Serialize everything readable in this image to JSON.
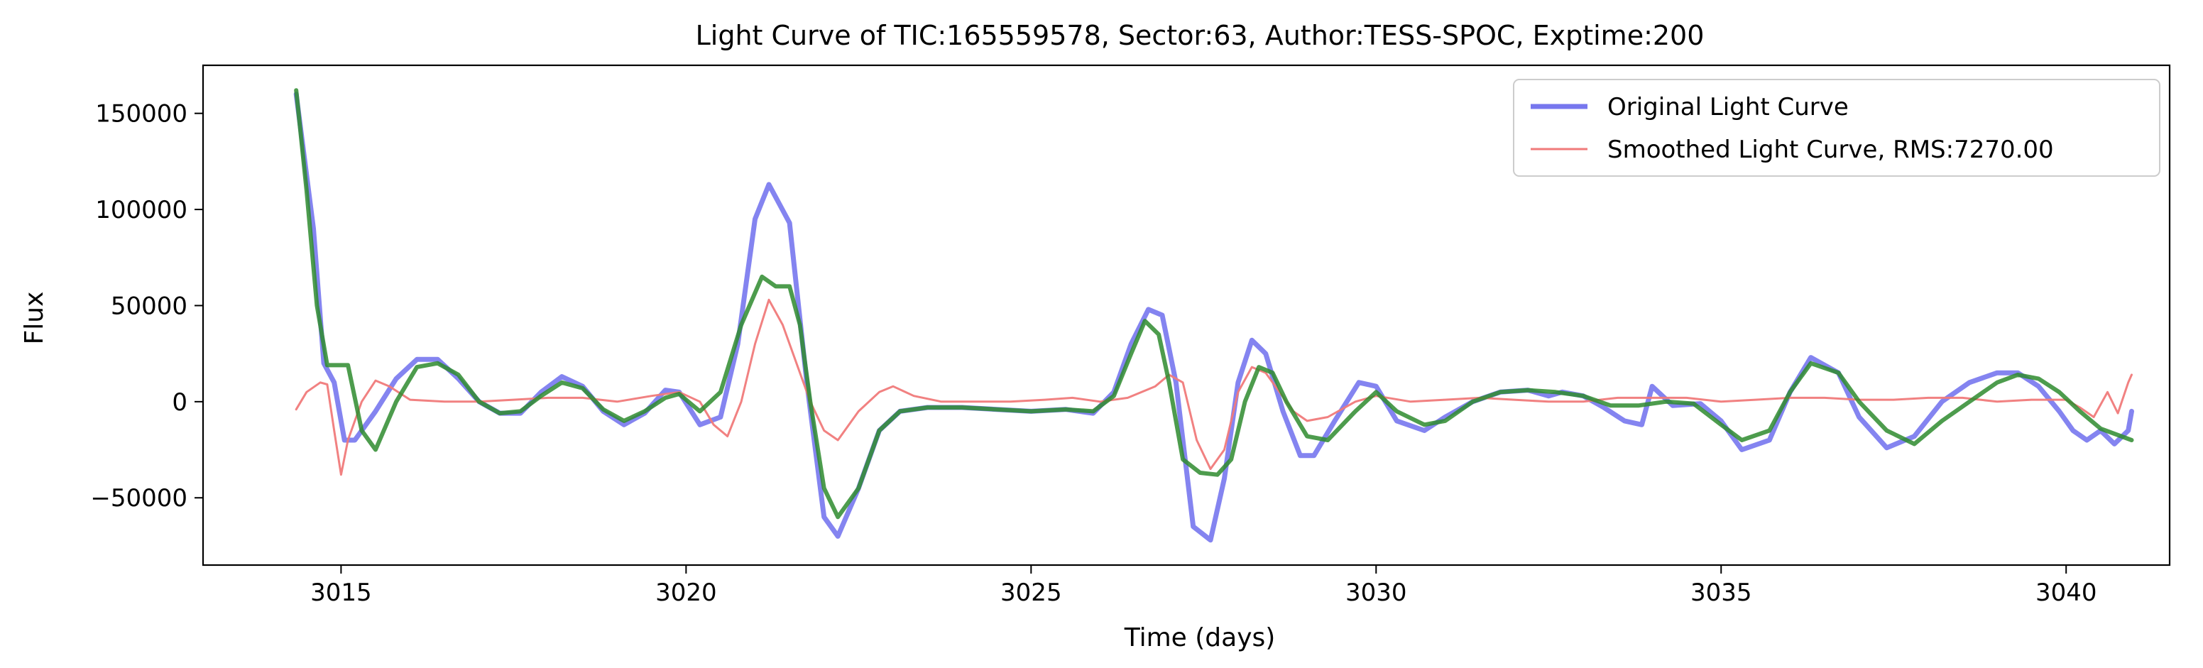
{
  "chart_data": {
    "type": "line",
    "title": "Light Curve of TIC:165559578, Sector:63, Author:TESS-SPOC, Exptime:200",
    "xlabel": "Time (days)",
    "ylabel": "Flux",
    "xlim": [
      3013,
      3041.5
    ],
    "ylim": [
      -85000,
      175000
    ],
    "xticks": [
      3015,
      3020,
      3025,
      3030,
      3035,
      3040
    ],
    "yticks": [
      -50000,
      0,
      50000,
      100000,
      150000
    ],
    "xtick_labels": [
      "3015",
      "3020",
      "3025",
      "3030",
      "3035",
      "3040"
    ],
    "ytick_labels": [
      "−50000",
      "0",
      "50000",
      "100000",
      "150000"
    ],
    "grid": false,
    "legend_position": "top-right",
    "legend": {
      "entries": [
        {
          "label": "Original Light Curve",
          "color": "#7777ee"
        },
        {
          "label": "Smoothed Light Curve, RMS:7270.00",
          "color": "#f07a7a"
        }
      ]
    },
    "series": [
      {
        "name": "Original Light Curve",
        "color": "#7777ee",
        "x": [
          3014.35,
          3014.6,
          3014.75,
          3014.9,
          3015.05,
          3015.2,
          3015.5,
          3015.8,
          3016.1,
          3016.4,
          3016.7,
          3017.0,
          3017.3,
          3017.6,
          3017.9,
          3018.2,
          3018.5,
          3018.8,
          3019.1,
          3019.4,
          3019.7,
          3019.9,
          3020.2,
          3020.5,
          3020.75,
          3021.0,
          3021.2,
          3021.5,
          3021.75,
          3022.0,
          3022.2,
          3022.5,
          3022.8,
          3023.1,
          3023.5,
          3024.0,
          3024.5,
          3025.0,
          3025.5,
          3025.9,
          3026.2,
          3026.45,
          3026.7,
          3026.9,
          3027.1,
          3027.35,
          3027.6,
          3027.8,
          3028.0,
          3028.2,
          3028.4,
          3028.65,
          3028.9,
          3029.1,
          3029.4,
          3029.75,
          3030.0,
          3030.3,
          3030.7,
          3031.0,
          3031.4,
          3031.8,
          3032.2,
          3032.5,
          3032.7,
          3033.0,
          3033.3,
          3033.6,
          3033.85,
          3034.0,
          3034.3,
          3034.7,
          3035.0,
          3035.3,
          3035.7,
          3036.0,
          3036.3,
          3036.7,
          3037.0,
          3037.4,
          3037.8,
          3038.2,
          3038.6,
          3039.0,
          3039.3,
          3039.6,
          3039.9,
          3040.1,
          3040.3,
          3040.5,
          3040.7,
          3040.9,
          3040.95
        ],
        "y": [
          160000,
          90000,
          20000,
          10000,
          -20000,
          -20000,
          -5000,
          12000,
          22000,
          22000,
          12000,
          0,
          -6000,
          -6000,
          5000,
          13000,
          8000,
          -5000,
          -12000,
          -6000,
          6000,
          5000,
          -12000,
          -8000,
          30000,
          95000,
          113000,
          93000,
          10000,
          -60000,
          -70000,
          -45000,
          -15000,
          -5000,
          -3000,
          -3000,
          -4000,
          -5000,
          -4000,
          -6000,
          5000,
          30000,
          48000,
          45000,
          10000,
          -65000,
          -72000,
          -40000,
          10000,
          32000,
          25000,
          -5000,
          -28000,
          -28000,
          -10000,
          10000,
          8000,
          -10000,
          -15000,
          -8000,
          0,
          5000,
          6000,
          3000,
          5000,
          3000,
          -3000,
          -10000,
          -12000,
          8000,
          -2000,
          -1000,
          -10000,
          -25000,
          -20000,
          5000,
          23000,
          15000,
          -8000,
          -24000,
          -18000,
          0,
          10000,
          15000,
          15000,
          8000,
          -5000,
          -15000,
          -20000,
          -15000,
          -22000,
          -15000,
          -5000
        ]
      },
      {
        "color": "#f07a7a",
        "x": [
          3014.35,
          3014.5,
          3014.7,
          3014.8,
          3014.9,
          3015.0,
          3015.1,
          3015.3,
          3015.5,
          3015.7,
          3016.0,
          3016.5,
          3017.0,
          3017.5,
          3018.0,
          3018.5,
          3019.0,
          3019.5,
          3019.9,
          3020.2,
          3020.4,
          3020.6,
          3020.8,
          3021.0,
          3021.2,
          3021.4,
          3021.6,
          3021.8,
          3022.0,
          3022.2,
          3022.5,
          3022.8,
          3023.0,
          3023.3,
          3023.7,
          3024.2,
          3024.7,
          3025.2,
          3025.6,
          3026.0,
          3026.4,
          3026.8,
          3027.0,
          3027.2,
          3027.4,
          3027.6,
          3027.8,
          3028.0,
          3028.2,
          3028.4,
          3028.6,
          3028.8,
          3029.0,
          3029.3,
          3029.7,
          3030.0,
          3030.5,
          3031.0,
          3031.5,
          3032.0,
          3032.5,
          3033.0,
          3033.5,
          3034.0,
          3034.5,
          3035.0,
          3035.5,
          3036.0,
          3036.5,
          3037.0,
          3037.5,
          3038.0,
          3038.5,
          3039.0,
          3039.5,
          3040.0,
          3040.2,
          3040.4,
          3040.6,
          3040.75,
          3040.9,
          3040.95
        ],
        "y": [
          -4000,
          5000,
          10000,
          9000,
          -15000,
          -38000,
          -20000,
          0,
          11000,
          8000,
          1000,
          0,
          0,
          1000,
          2000,
          2000,
          0,
          3000,
          5000,
          0,
          -12000,
          -18000,
          0,
          30000,
          53000,
          40000,
          20000,
          0,
          -15000,
          -20000,
          -5000,
          5000,
          8000,
          3000,
          0,
          0,
          0,
          1000,
          2000,
          0,
          2000,
          8000,
          14000,
          10000,
          -20000,
          -35000,
          -25000,
          5000,
          18000,
          15000,
          5000,
          -5000,
          -10000,
          -8000,
          0,
          3000,
          0,
          1000,
          2000,
          1000,
          0,
          0,
          2000,
          2000,
          2000,
          0,
          1000,
          2000,
          2000,
          1000,
          1000,
          2000,
          2000,
          0,
          1000,
          1000,
          -3000,
          -8000,
          5000,
          -6000,
          10000,
          14000
        ]
      },
      {
        "color": "#2e8b2e",
        "x": [
          3014.35,
          3014.5,
          3014.65,
          3014.8,
          3015.1,
          3015.3,
          3015.5,
          3015.8,
          3016.1,
          3016.4,
          3016.7,
          3017.0,
          3017.3,
          3017.6,
          3017.9,
          3018.2,
          3018.5,
          3018.8,
          3019.1,
          3019.4,
          3019.7,
          3019.9,
          3020.2,
          3020.5,
          3020.8,
          3021.1,
          3021.3,
          3021.5,
          3021.65,
          3021.8,
          3022.0,
          3022.2,
          3022.5,
          3022.8,
          3023.1,
          3023.5,
          3024.0,
          3024.5,
          3025.0,
          3025.5,
          3025.9,
          3026.2,
          3026.45,
          3026.65,
          3026.85,
          3027.0,
          3027.2,
          3027.45,
          3027.7,
          3027.9,
          3028.1,
          3028.3,
          3028.5,
          3028.7,
          3029.0,
          3029.3,
          3029.7,
          3030.0,
          3030.3,
          3030.7,
          3031.0,
          3031.4,
          3031.8,
          3032.2,
          3032.6,
          3033.0,
          3033.4,
          3033.8,
          3034.2,
          3034.6,
          3035.0,
          3035.3,
          3035.7,
          3036.0,
          3036.3,
          3036.7,
          3037.0,
          3037.4,
          3037.8,
          3038.2,
          3038.6,
          3039.0,
          3039.3,
          3039.6,
          3039.9,
          3040.2,
          3040.5,
          3040.95
        ],
        "y": [
          162000,
          110000,
          50000,
          19000,
          19000,
          -15000,
          -25000,
          0,
          18000,
          20000,
          14000,
          0,
          -6000,
          -5000,
          3000,
          10000,
          7000,
          -4000,
          -10000,
          -5000,
          2000,
          4000,
          -5000,
          5000,
          40000,
          65000,
          60000,
          60000,
          40000,
          0,
          -45000,
          -60000,
          -45000,
          -15000,
          -5000,
          -3000,
          -3000,
          -4000,
          -5000,
          -4000,
          -5000,
          3000,
          25000,
          42000,
          35000,
          10000,
          -30000,
          -37000,
          -38000,
          -30000,
          0,
          18000,
          15000,
          0,
          -18000,
          -20000,
          -5000,
          5000,
          -5000,
          -12000,
          -10000,
          0,
          5000,
          6000,
          5000,
          3000,
          -2000,
          -2000,
          0,
          -1000,
          -12000,
          -20000,
          -15000,
          5000,
          20000,
          15000,
          0,
          -15000,
          -22000,
          -10000,
          0,
          10000,
          14000,
          12000,
          5000,
          -5000,
          -14000,
          -20000
        ]
      }
    ]
  }
}
